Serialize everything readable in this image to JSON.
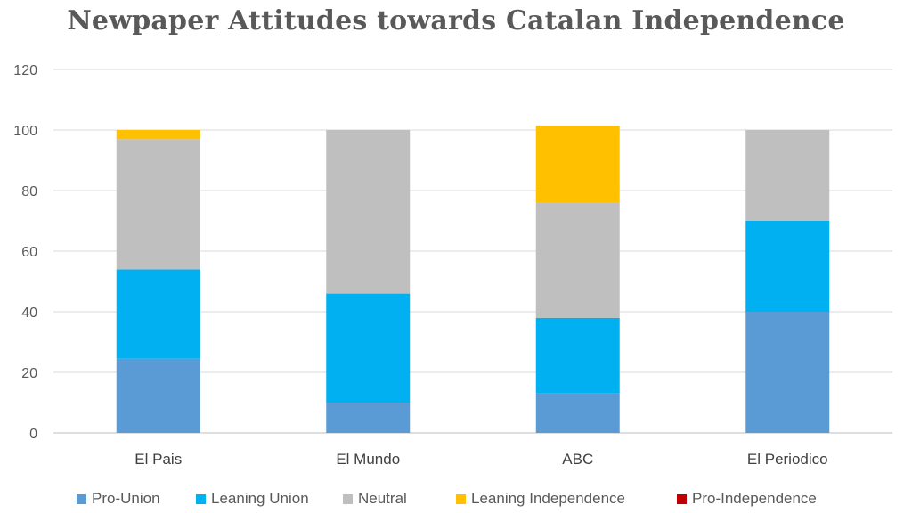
{
  "chart_data": {
    "type": "bar",
    "stacked": true,
    "title": "Newpaper Attitudes towards Catalan Independence",
    "categories": [
      "El Pais",
      "El Mundo",
      "ABC",
      "El Periodico"
    ],
    "series": [
      {
        "name": "Pro-Union",
        "color": "#5B9BD5",
        "values": [
          24.5,
          10,
          13,
          40
        ]
      },
      {
        "name": "Leaning Union",
        "color": "#00B0F0",
        "values": [
          29.5,
          36,
          25,
          30
        ]
      },
      {
        "name": "Neutral",
        "color": "#BFBFBF",
        "values": [
          43,
          54,
          38,
          30
        ]
      },
      {
        "name": "Leaning Independence",
        "color": "#FFC000",
        "values": [
          3,
          0,
          25.5,
          0
        ]
      },
      {
        "name": "Pro-Independence",
        "color": "#C00000",
        "values": [
          0,
          0,
          0,
          0
        ]
      }
    ],
    "ylim": [
      0,
      120
    ],
    "yticks": [
      0,
      20,
      40,
      60,
      80,
      100,
      120
    ],
    "xlabel": "",
    "ylabel": "",
    "grid": true,
    "legend": "bottom"
  }
}
